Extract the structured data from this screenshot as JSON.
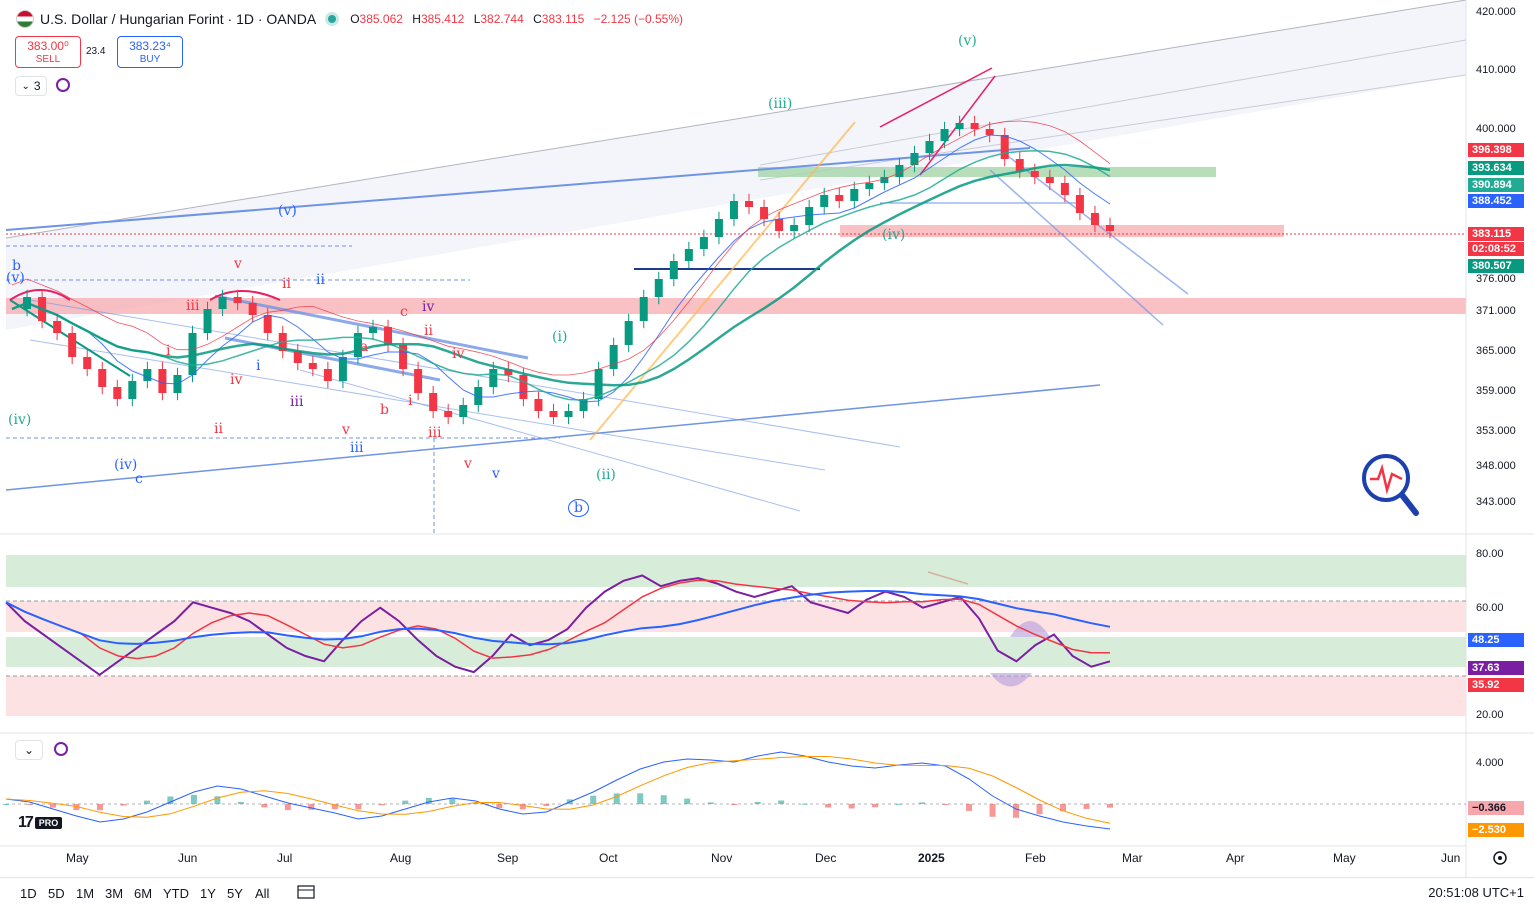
{
  "header": {
    "title": "U.S. Dollar / Hungarian Forint · 1D · OANDA",
    "ohlc": [
      {
        "k": "O",
        "v": "385.062"
      },
      {
        "k": "H",
        "v": "385.412"
      },
      {
        "k": "L",
        "v": "382.744"
      },
      {
        "k": "C",
        "v": "383.115"
      }
    ],
    "change": "−2.125 (−0.55%)"
  },
  "trade": {
    "sell_price": "383.00⁰",
    "sell_label": "SELL",
    "spread": "23.4",
    "buy_price": "383.23⁴",
    "buy_label": "BUY"
  },
  "indicators_toggle": "3",
  "pane3_toggle": "⌄",
  "price_axis": [
    "420.000",
    "410.000",
    "400.000",
    "376.000",
    "371.000",
    "365.000",
    "359.000",
    "353.000",
    "348.000",
    "343.000"
  ],
  "price_tags": [
    {
      "text": "396.398",
      "color": "#f23645"
    },
    {
      "text": "393.634",
      "color": "#089981"
    },
    {
      "text": "390.894",
      "color": "#22ab94"
    },
    {
      "text": "388.452",
      "color": "#2962ff"
    },
    {
      "text": "383.115",
      "color": "#f23645"
    },
    {
      "text": "02:08:52",
      "color": "#f23645"
    },
    {
      "text": "380.507",
      "color": "#089981"
    }
  ],
  "rsi_axis": [
    "80.00",
    "60.00",
    "20.00"
  ],
  "rsi_tags": [
    {
      "text": "48.25",
      "color": "#2962ff"
    },
    {
      "text": "37.63",
      "color": "#7b1fa2"
    },
    {
      "text": "35.92",
      "color": "#f23645"
    }
  ],
  "macd_axis": [
    "4.000"
  ],
  "macd_tags": [
    {
      "text": "−0.366",
      "color": "#f7a6ab",
      "fg": "#131722"
    },
    {
      "text": "−2.530",
      "color": "#ff9800",
      "fg": "#ffffff"
    }
  ],
  "time_axis": [
    "May",
    "Jun",
    "Jul",
    "Aug",
    "Sep",
    "Oct",
    "Nov",
    "Dec",
    "2025",
    "Feb",
    "Mar",
    "Apr",
    "May",
    "Jun"
  ],
  "wave_labels": [
    {
      "t": "b",
      "c": "wb"
    },
    {
      "t": "(v)",
      "c": "wb"
    },
    {
      "t": "(iv)",
      "c": "wg"
    },
    {
      "t": "(iv)",
      "c": "wb"
    },
    {
      "t": "c",
      "c": "wb"
    },
    {
      "t": "v",
      "c": "wr"
    },
    {
      "t": "ii",
      "c": "wr"
    },
    {
      "t": "ii",
      "c": "wb"
    },
    {
      "t": "iii",
      "c": "wr"
    },
    {
      "t": "iv",
      "c": "wr"
    },
    {
      "t": "i",
      "c": "wr"
    },
    {
      "t": "i",
      "c": "wb"
    },
    {
      "t": "iii",
      "c": "wp"
    },
    {
      "t": "ii",
      "c": "wr"
    },
    {
      "t": "c",
      "c": "wr"
    },
    {
      "t": "iv",
      "c": "wp"
    },
    {
      "t": "ii",
      "c": "wr"
    },
    {
      "t": "a",
      "c": "wr"
    },
    {
      "t": "iv",
      "c": "wr"
    },
    {
      "t": "b",
      "c": "wr"
    },
    {
      "t": "i",
      "c": "wr"
    },
    {
      "t": "v",
      "c": "wr"
    },
    {
      "t": "iii",
      "c": "wr"
    },
    {
      "t": "iii",
      "c": "wb"
    },
    {
      "t": "v",
      "c": "wr"
    },
    {
      "t": "v",
      "c": "wb"
    },
    {
      "t": "(v)",
      "c": "wb"
    },
    {
      "t": "(i)",
      "c": "wg"
    },
    {
      "t": "(ii)",
      "c": "wg"
    },
    {
      "t": "b",
      "c": "wb"
    },
    {
      "t": "(iii)",
      "c": "wg"
    },
    {
      "t": "(iv)",
      "c": "wg"
    },
    {
      "t": "(v)",
      "c": "wg"
    }
  ],
  "ranges": [
    "1D",
    "5D",
    "1M",
    "3M",
    "6M",
    "YTD",
    "1Y",
    "5Y",
    "All"
  ],
  "clock": "20:51:08 UTC+1",
  "logo": {
    "tv": "17",
    "pro": "PRO"
  },
  "colors": {
    "bull": "#089981",
    "bear": "#f23645",
    "accent": "#2962ff"
  },
  "series_price": [
    370,
    372,
    368,
    366,
    362,
    360,
    357,
    355,
    358,
    360,
    356,
    359,
    366,
    370,
    372,
    371,
    369,
    366,
    363,
    361,
    360,
    358,
    362,
    366,
    367,
    364,
    360,
    356,
    353,
    352,
    354,
    357,
    360,
    359,
    355,
    353,
    352,
    353,
    355,
    360,
    364,
    368,
    372,
    375,
    378,
    380,
    382,
    385,
    388,
    387,
    385,
    383,
    384,
    387,
    389,
    388,
    390,
    391,
    392,
    394,
    396,
    398,
    400,
    401,
    400,
    399,
    395,
    393,
    392,
    391,
    389,
    386,
    384,
    383
  ],
  "series_rsi": [
    62,
    55,
    50,
    45,
    40,
    35,
    40,
    45,
    50,
    55,
    62,
    60,
    58,
    55,
    50,
    45,
    42,
    40,
    48,
    55,
    60,
    55,
    48,
    42,
    38,
    36,
    42,
    50,
    46,
    48,
    52,
    60,
    66,
    70,
    72,
    68,
    70,
    71,
    69,
    66,
    64,
    66,
    68,
    62,
    60,
    58,
    63,
    66,
    64,
    60,
    62,
    64,
    56,
    44,
    40,
    46,
    50,
    42,
    38,
    40
  ],
  "series_macd": [
    0.5,
    0.2,
    -0.5,
    -1.2,
    -1.8,
    -1.5,
    -0.8,
    0.2,
    1.2,
    1.8,
    1.5,
    0.8,
    0.1,
    -0.4,
    -0.9,
    -1.5,
    -1.2,
    -0.5,
    0.2,
    0.6,
    0.3,
    -0.5,
    -1.0,
    -0.8,
    0.2,
    1.2,
    2.4,
    3.5,
    4.2,
    4.5,
    4.4,
    4.2,
    4.8,
    5.2,
    4.8,
    4.2,
    3.8,
    3.6,
    3.9,
    4.1,
    3.8,
    2.5,
    0.8,
    -0.5,
    -1.2,
    -1.8,
    -2.2,
    -2.5
  ]
}
